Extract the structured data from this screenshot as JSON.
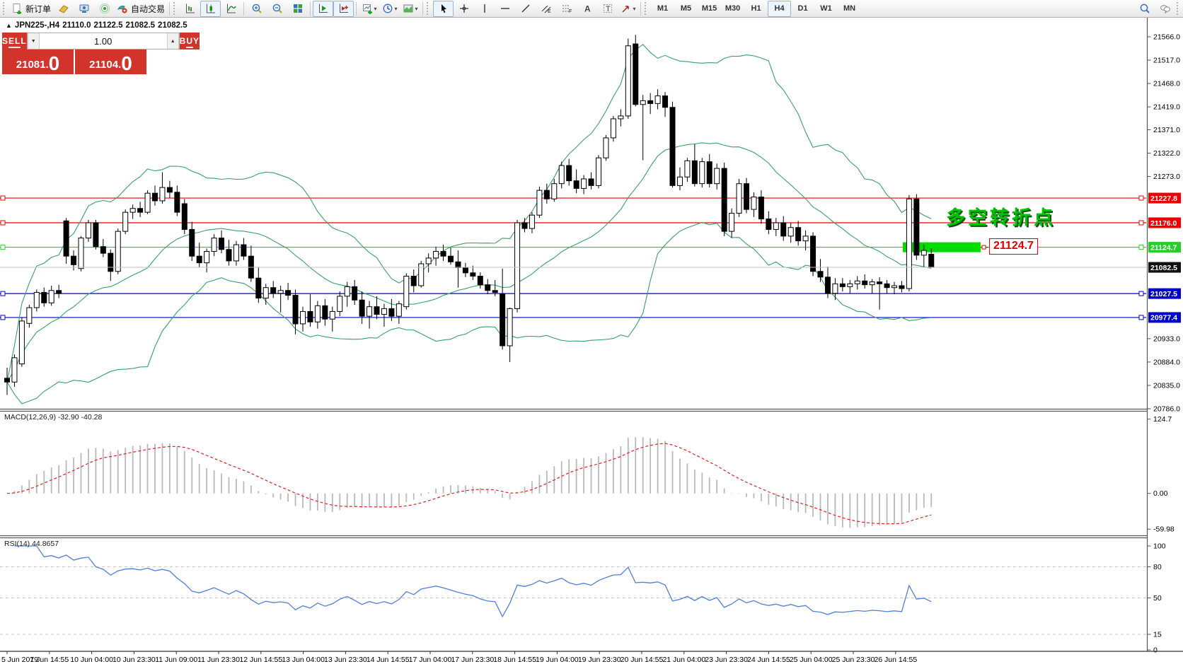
{
  "toolbar": {
    "items": [
      {
        "type": "grip"
      },
      {
        "type": "btn",
        "name": "new-order-button",
        "icon": "doc-plus",
        "label": "新订单"
      },
      {
        "type": "btn",
        "name": "market-watch-button",
        "icon": "book"
      },
      {
        "type": "btn",
        "name": "publisher-button",
        "icon": "publisher"
      },
      {
        "type": "btn",
        "name": "signals-button",
        "icon": "signal"
      },
      {
        "type": "btn",
        "name": "auto-trading-button",
        "icon": "autotrading",
        "label": "自动交易"
      },
      {
        "type": "sep"
      },
      {
        "type": "grip"
      },
      {
        "type": "btn",
        "name": "bar-chart-button",
        "icon": "chart-bars"
      },
      {
        "type": "btn",
        "name": "candlestick-chart-button",
        "icon": "chart-candles",
        "active": true
      },
      {
        "type": "btn",
        "name": "line-chart-button",
        "icon": "chart-line"
      },
      {
        "type": "sep"
      },
      {
        "type": "btn",
        "name": "zoom-in-button",
        "icon": "zoom-in"
      },
      {
        "type": "btn",
        "name": "zoom-out-button",
        "icon": "zoom-out"
      },
      {
        "type": "btn",
        "name": "tile-windows-button",
        "icon": "tile"
      },
      {
        "type": "sep"
      },
      {
        "type": "btn",
        "name": "auto-scroll-button",
        "icon": "auto-scroll",
        "active": true
      },
      {
        "type": "btn",
        "name": "chart-shift-button",
        "icon": "chart-shift",
        "active": true
      },
      {
        "type": "sep"
      },
      {
        "type": "btn",
        "name": "new-chart-button",
        "icon": "new-chart",
        "caret": true
      },
      {
        "type": "btn",
        "name": "periods-button",
        "icon": "clock",
        "caret": true
      },
      {
        "type": "btn",
        "name": "templates-button",
        "icon": "template",
        "caret": true
      },
      {
        "type": "sep"
      },
      {
        "type": "grip"
      },
      {
        "type": "btn",
        "name": "cursor-button",
        "icon": "cursor",
        "active": true
      },
      {
        "type": "btn",
        "name": "crosshair-button",
        "icon": "crosshair"
      },
      {
        "type": "btn",
        "name": "vertical-line-button",
        "icon": "vline"
      },
      {
        "type": "btn",
        "name": "horizontal-line-button",
        "icon": "hline"
      },
      {
        "type": "btn",
        "name": "trendline-button",
        "icon": "trendline"
      },
      {
        "type": "btn",
        "name": "equidistant-channel-button",
        "icon": "channel"
      },
      {
        "type": "btn",
        "name": "fibonacci-button",
        "icon": "fibo"
      },
      {
        "type": "btn",
        "name": "text-button",
        "icon": "textA"
      },
      {
        "type": "btn",
        "name": "text-label-button",
        "icon": "textT"
      },
      {
        "type": "btn",
        "name": "arrows-button",
        "icon": "arrow",
        "caret": true
      },
      {
        "type": "sep"
      },
      {
        "type": "grip"
      },
      {
        "type": "tf",
        "name": "timeframe-m1-button",
        "label": "M1"
      },
      {
        "type": "tf",
        "name": "timeframe-m5-button",
        "label": "M5"
      },
      {
        "type": "tf",
        "name": "timeframe-m15-button",
        "label": "M15"
      },
      {
        "type": "tf",
        "name": "timeframe-m30-button",
        "label": "M30"
      },
      {
        "type": "tf",
        "name": "timeframe-h1-button",
        "label": "H1"
      },
      {
        "type": "tf",
        "name": "timeframe-h4-button",
        "label": "H4",
        "active": true
      },
      {
        "type": "tf",
        "name": "timeframe-d1-button",
        "label": "D1"
      },
      {
        "type": "tf",
        "name": "timeframe-w1-button",
        "label": "W1"
      },
      {
        "type": "tf",
        "name": "timeframe-mn-button",
        "label": "MN"
      },
      {
        "type": "spacer"
      },
      {
        "type": "btn",
        "name": "search-button",
        "icon": "search"
      },
      {
        "type": "btn",
        "name": "chat-button",
        "icon": "chat"
      },
      {
        "type": "grip"
      }
    ]
  },
  "chart_header": {
    "collapse_icon": "▲",
    "symbol_period": "JPN225-,H4",
    "open": "21110.0",
    "high": "21122.5",
    "low": "21082.5",
    "close": "21082.5"
  },
  "trade_panel": {
    "sell_label": "SELL",
    "buy_label": "BUY",
    "volume": "1.00",
    "decrease_icon": "▼",
    "increase_icon": "▲",
    "sell_price": {
      "int": "21081",
      "point": ".",
      "dec": "0"
    },
    "buy_price": {
      "int": "21104",
      "point": ".",
      "dec": "0"
    }
  },
  "indicator_labels": {
    "macd": "MACD(12,26,9) -32.90 -40.28",
    "rsi": "RSI(14) 44.8657"
  },
  "annotations": {
    "turning_point_text": "多空转折点",
    "turning_point_color": "#00c300",
    "price_callout": "21124.7",
    "callout_color": "#e00000",
    "highlight_color": "#00dc00"
  },
  "chart_data": {
    "type": "candlestick",
    "symbol": "JPN225-",
    "period": "H4",
    "ylim": {
      "top": 21606,
      "bottom": 20786
    },
    "price_ticks": [
      21566,
      21517,
      21468,
      21419,
      21371,
      21322,
      21273,
      20933,
      20884,
      20835,
      20786
    ],
    "hlines": [
      {
        "price": 21227.8,
        "color": "#ee0000",
        "label": "21227.8",
        "label_bg": "#ee0000",
        "squares": true
      },
      {
        "price": 21176.0,
        "color": "#ee0000",
        "label": "21176.0",
        "label_bg": "#ee0000",
        "squares": true
      },
      {
        "price": 21124.7,
        "color": "#2ecc2e",
        "label": "21124.7",
        "label_bg": "#28cd28",
        "squares": true
      },
      {
        "price": 21082.5,
        "color": "#c0c0c0",
        "label": "21082.5",
        "label_bg": "#101010",
        "squares": false,
        "over": true
      },
      {
        "price": 21027.5,
        "color": "#0000cc",
        "label": "21027.5",
        "label_bg": "#0000cc",
        "squares": true
      },
      {
        "price": 20977.4,
        "color": "#0000cc",
        "label": "20977.4",
        "label_bg": "#0000cc",
        "squares": true
      }
    ],
    "candles": [
      [
        20850,
        20872,
        20815,
        20842
      ],
      [
        20842,
        20900,
        20832,
        20893
      ],
      [
        20880,
        20978,
        20874,
        20970
      ],
      [
        20965,
        21004,
        20956,
        20998
      ],
      [
        20998,
        21036,
        20990,
        21030
      ],
      [
        21030,
        21040,
        21000,
        21008
      ],
      [
        21008,
        21044,
        21002,
        21034
      ],
      [
        21034,
        21046,
        21018,
        21028
      ],
      [
        21180,
        21186,
        21090,
        21106
      ],
      [
        21106,
        21118,
        21076,
        21088
      ],
      [
        21080,
        21148,
        21074,
        21144
      ],
      [
        21144,
        21182,
        21136,
        21176
      ],
      [
        21176,
        21182,
        21120,
        21126
      ],
      [
        21126,
        21142,
        21104,
        21112
      ],
      [
        21112,
        21120,
        21054,
        21074
      ],
      [
        21074,
        21164,
        21068,
        21158
      ],
      [
        21158,
        21204,
        21152,
        21198
      ],
      [
        21198,
        21214,
        21184,
        21206
      ],
      [
        21206,
        21220,
        21188,
        21198
      ],
      [
        21198,
        21244,
        21194,
        21238
      ],
      [
        21238,
        21254,
        21212,
        21222
      ],
      [
        21222,
        21282,
        21216,
        21250
      ],
      [
        21250,
        21264,
        21228,
        21240
      ],
      [
        21240,
        21254,
        21190,
        21198
      ],
      [
        21216,
        21226,
        21152,
        21162
      ],
      [
        21162,
        21178,
        21096,
        21106
      ],
      [
        21106,
        21134,
        21082,
        21092
      ],
      [
        21092,
        21122,
        21072,
        21116
      ],
      [
        21116,
        21152,
        21106,
        21144
      ],
      [
        21144,
        21160,
        21112,
        21120
      ],
      [
        21120,
        21140,
        21086,
        21096
      ],
      [
        21096,
        21138,
        21086,
        21130
      ],
      [
        21130,
        21144,
        21098,
        21106
      ],
      [
        21106,
        21128,
        21052,
        21060
      ],
      [
        21060,
        21082,
        21008,
        21018
      ],
      [
        21018,
        21048,
        21004,
        21040
      ],
      [
        21040,
        21054,
        21018,
        21028
      ],
      [
        21028,
        21044,
        20988,
        21034
      ],
      [
        21034,
        21050,
        21014,
        21024
      ],
      [
        21024,
        21036,
        20942,
        20964
      ],
      [
        20964,
        21000,
        20948,
        20990
      ],
      [
        20990,
        21026,
        20958,
        20968
      ],
      [
        20968,
        21012,
        20954,
        21002
      ],
      [
        21002,
        21016,
        20960,
        20974
      ],
      [
        20974,
        21000,
        20948,
        20990
      ],
      [
        20990,
        21032,
        20980,
        21022
      ],
      [
        21022,
        21052,
        21000,
        21042
      ],
      [
        21042,
        21056,
        21004,
        21014
      ],
      [
        21014,
        21032,
        20964,
        20980
      ],
      [
        20980,
        21012,
        20954,
        21000
      ],
      [
        21000,
        21022,
        20974,
        20984
      ],
      [
        20984,
        21006,
        20958,
        20996
      ],
      [
        20996,
        21016,
        20970,
        20980
      ],
      [
        20980,
        21012,
        20964,
        21006
      ],
      [
        21000,
        21070,
        20994,
        21064
      ],
      [
        21064,
        21078,
        21030,
        21044
      ],
      [
        21044,
        21096,
        21040,
        21090
      ],
      [
        21090,
        21112,
        21072,
        21102
      ],
      [
        21102,
        21126,
        21086,
        21116
      ],
      [
        21116,
        21130,
        21096,
        21106
      ],
      [
        21106,
        21124,
        21088,
        21094
      ],
      [
        21094,
        21118,
        21040,
        21082
      ],
      [
        21082,
        21092,
        21062,
        21071
      ],
      [
        21071,
        21086,
        21056,
        21064
      ],
      [
        21064,
        21072,
        21038,
        21046
      ],
      [
        21046,
        21058,
        21026,
        21034
      ],
      [
        21034,
        21056,
        21022,
        21030
      ],
      [
        21027,
        21080,
        20910,
        20918
      ],
      [
        20918,
        20998,
        20884,
        20996
      ],
      [
        20996,
        21182,
        20988,
        21176
      ],
      [
        21176,
        21186,
        21156,
        21164
      ],
      [
        21164,
        21198,
        21154,
        21192
      ],
      [
        21192,
        21252,
        21186,
        21244
      ],
      [
        21244,
        21258,
        21216,
        21226
      ],
      [
        21226,
        21268,
        21220,
        21258
      ],
      [
        21258,
        21304,
        21248,
        21296
      ],
      [
        21296,
        21310,
        21254,
        21264
      ],
      [
        21264,
        21288,
        21238,
        21248
      ],
      [
        21248,
        21276,
        21236,
        21268
      ],
      [
        21268,
        21282,
        21246,
        21254
      ],
      [
        21254,
        21318,
        21248,
        21312
      ],
      [
        21312,
        21360,
        21306,
        21354
      ],
      [
        21354,
        21400,
        21346,
        21394
      ],
      [
        21394,
        21414,
        21378,
        21400
      ],
      [
        21400,
        21562,
        21394,
        21547
      ],
      [
        21551,
        21570,
        21420,
        21424
      ],
      [
        21424,
        21444,
        21307,
        21432
      ],
      [
        21432,
        21448,
        21404,
        21426
      ],
      [
        21426,
        21456,
        21414,
        21442
      ],
      [
        21442,
        21450,
        21398,
        21418
      ],
      [
        21418,
        21430,
        21250,
        21254
      ],
      [
        21254,
        21292,
        21244,
        21272
      ],
      [
        21272,
        21312,
        21262,
        21306
      ],
      [
        21306,
        21341,
        21252,
        21258
      ],
      [
        21258,
        21312,
        21250,
        21304
      ],
      [
        21304,
        21320,
        21250,
        21258
      ],
      [
        21258,
        21300,
        21246,
        21290
      ],
      [
        21290,
        21302,
        21148,
        21158
      ],
      [
        21158,
        21206,
        21144,
        21196
      ],
      [
        21196,
        21268,
        21188,
        21258
      ],
      [
        21258,
        21270,
        21196,
        21204
      ],
      [
        21204,
        21240,
        21188,
        21230
      ],
      [
        21230,
        21244,
        21174,
        21184
      ],
      [
        21184,
        21200,
        21152,
        21162
      ],
      [
        21162,
        21186,
        21148,
        21176
      ],
      [
        21176,
        21190,
        21138,
        21148
      ],
      [
        21148,
        21176,
        21134,
        21166
      ],
      [
        21166,
        21180,
        21128,
        21138
      ],
      [
        21138,
        21160,
        21118,
        21148
      ],
      [
        21148,
        21156,
        21064,
        21074
      ],
      [
        21074,
        21100,
        21052,
        21062
      ],
      [
        21062,
        21084,
        21018,
        21028
      ],
      [
        21028,
        21060,
        21014,
        21048
      ],
      [
        21048,
        21060,
        21032,
        21042
      ],
      [
        21042,
        21056,
        21028,
        21048
      ],
      [
        21048,
        21064,
        21036,
        21054
      ],
      [
        21054,
        21068,
        21038,
        21046
      ],
      [
        21046,
        21058,
        21028,
        21052
      ],
      [
        21052,
        21062,
        20994,
        21048
      ],
      [
        21048,
        21056,
        21028,
        21040
      ],
      [
        21040,
        21052,
        21026,
        21044
      ],
      [
        21044,
        21054,
        21030,
        21038
      ],
      [
        21038,
        21234,
        21032,
        21226
      ],
      [
        21226,
        21236,
        21098,
        21108
      ],
      [
        21108,
        21130,
        21084,
        21118
      ],
      [
        21110,
        21122.5,
        21082.5,
        21082.5
      ]
    ],
    "bollinger": {
      "period": 20,
      "deviation": 2,
      "color": "#3aa069"
    },
    "macd": {
      "fast": 12,
      "slow": 26,
      "signal": 9,
      "hist_color": "#b9b9b9",
      "signal_color": "#e02020",
      "ylim": {
        "top": 135,
        "bottom": -68
      },
      "scale_labels": [
        {
          "v": 124.7,
          "t": "124.7"
        },
        {
          "v": 0,
          "t": "0.00"
        },
        {
          "v": -59.98,
          "t": "-59.98"
        }
      ]
    },
    "rsi": {
      "period": 14,
      "color": "#4f7fd9",
      "ylim": {
        "top": 100,
        "bottom": 0
      },
      "levels": [
        {
          "v": 100,
          "t": "100",
          "dash": false
        },
        {
          "v": 80,
          "t": "80",
          "dash": true
        },
        {
          "v": 50,
          "t": "50",
          "dash": true
        },
        {
          "v": 15,
          "t": "15",
          "dash": true
        },
        {
          "v": 0,
          "t": "0",
          "dash": false
        }
      ]
    },
    "time_labels": [
      "5 Jun 2019",
      "7 Jun 14:55",
      "10 Jun 04:00",
      "10 Jun 23:30",
      "11 Jun 09:00",
      "11 Jun 23:30",
      "12 Jun 14:55",
      "13 Jun 04:00",
      "13 Jun 23:30",
      "14 Jun 14:55",
      "17 Jun 04:00",
      "17 Jun 23:30",
      "18 Jun 14:55",
      "19 Jun 04:00",
      "19 Jun 23:30",
      "20 Jun 14:55",
      "21 Jun 04:00",
      "23 Jun 23:30",
      "24 Jun 14:55",
      "25 Jun 04:00",
      "25 Jun 23:30",
      "26 Jun 14:55"
    ]
  }
}
